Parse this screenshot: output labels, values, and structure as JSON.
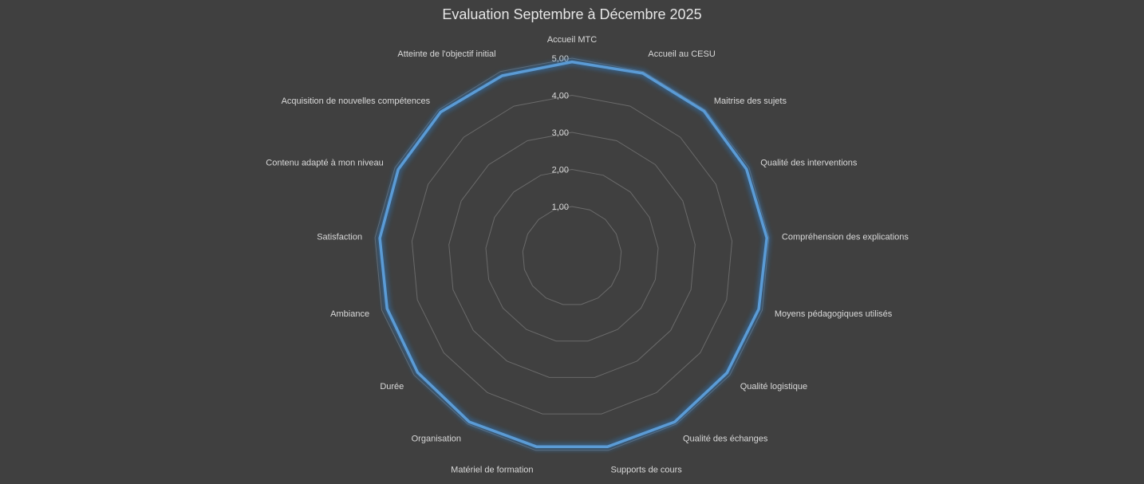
{
  "chart_data": {
    "type": "radar",
    "title": "Evaluation Septembre à Décembre 2025",
    "categories": [
      "Accueil MTC",
      "Accueil au CESU",
      "Maitrise des sujets",
      "Qualité des interventions",
      "Compréhension des explications",
      "Moyens pédagogiques utilisés",
      "Qualité logistique",
      "Qualité des échanges",
      "Supports de cours",
      "Matériel de formation",
      "Organisation",
      "Durée",
      "Ambiance",
      "Satisfaction",
      "Contenu adapté à mon niveau",
      "Acquisition de nouvelles compétences",
      "Atteinte de l'objectif initial"
    ],
    "series": [
      {
        "values": [
          4.9,
          4.95,
          4.95,
          4.92,
          4.94,
          4.9,
          4.9,
          4.93,
          4.9,
          4.9,
          4.93,
          4.88,
          4.85,
          4.87,
          4.9,
          4.92,
          4.88
        ]
      }
    ],
    "rmin": 1,
    "rmax": 5,
    "ticks": [
      "1,00",
      "2,00",
      "3,00",
      "4,00",
      "5,00"
    ],
    "tick_values": [
      1,
      2,
      3,
      4,
      5
    ],
    "grid": true,
    "legend": "none",
    "colors": {
      "background": "#404040",
      "series": "#5b9bd5",
      "glow": "#2e75b6",
      "grid": "#6a6a6a",
      "text": "#d9d9d9"
    }
  }
}
